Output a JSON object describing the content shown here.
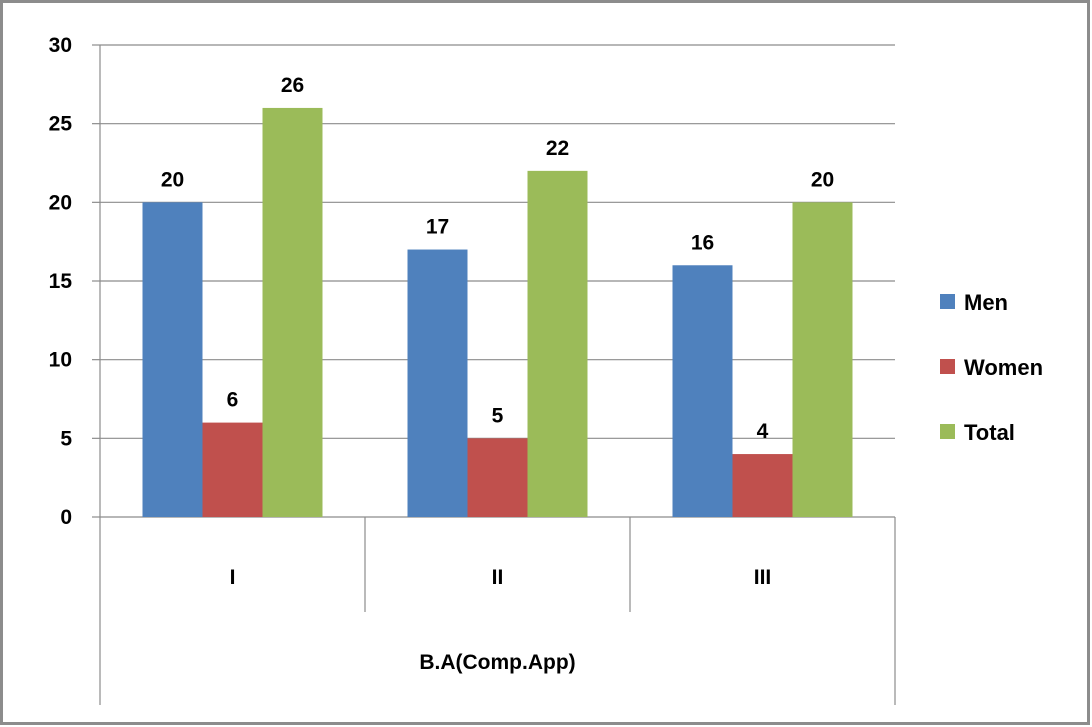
{
  "chart_data": {
    "type": "bar",
    "categories": [
      "I",
      "II",
      "III"
    ],
    "group_label": "B.A(Comp.App)",
    "series": [
      {
        "name": "Men",
        "values": [
          20,
          17,
          16
        ],
        "color": "#4f81bd"
      },
      {
        "name": "Women",
        "values": [
          6,
          5,
          4
        ],
        "color": "#c0504d"
      },
      {
        "name": "Total",
        "values": [
          26,
          22,
          20
        ],
        "color": "#9bbb59"
      }
    ],
    "ylim": [
      0,
      30
    ],
    "yticks": [
      0,
      5,
      10,
      15,
      20,
      25,
      30
    ],
    "grid": true,
    "data_labels": true,
    "legend": "right"
  }
}
